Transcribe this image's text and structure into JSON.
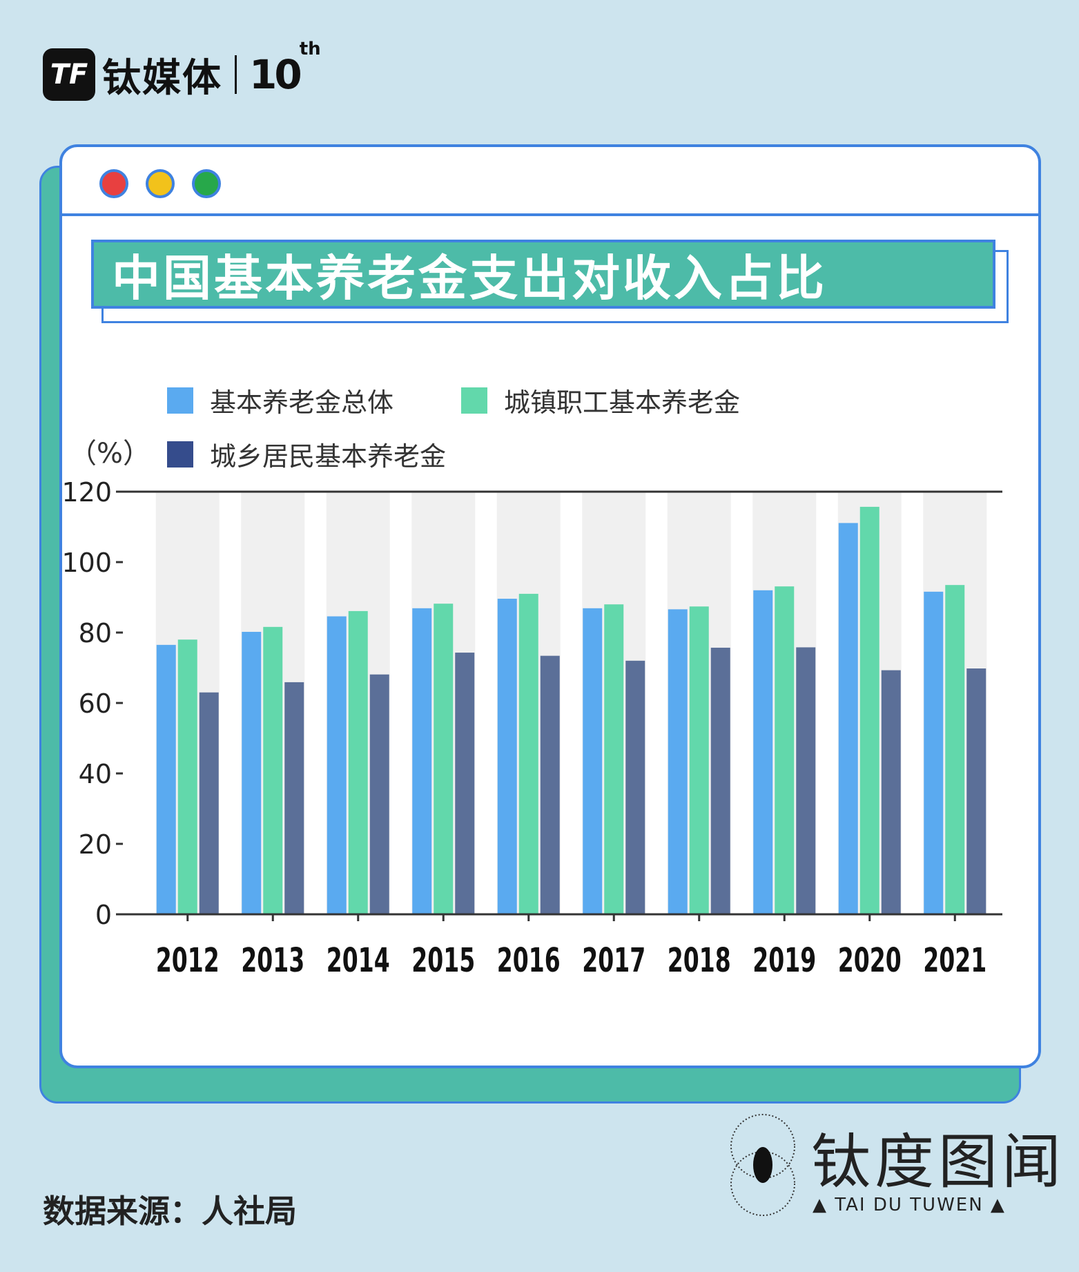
{
  "header": {
    "logo_mark": "TF",
    "logo_text": "钛媒体",
    "logo_anniv": "10",
    "logo_anniv_sup": "th"
  },
  "window_dots": [
    "#e84040",
    "#f2c21b",
    "#27a84a"
  ],
  "chart_data": {
    "type": "bar",
    "title": "中国基本养老金支出对收入占比",
    "ylabel": "（%）",
    "ylim": [
      0,
      120
    ],
    "yticks": [
      0,
      20,
      40,
      60,
      80,
      100,
      120
    ],
    "categories": [
      "2012",
      "2013",
      "2014",
      "2015",
      "2016",
      "2017",
      "2018",
      "2019",
      "2020",
      "2021"
    ],
    "series": [
      {
        "name": "基本养老金总体",
        "color": "#5aaaf0",
        "values": [
          76.5,
          80.2,
          84.6,
          86.9,
          89.6,
          86.9,
          86.6,
          92.0,
          111.1,
          91.6
        ]
      },
      {
        "name": "城镇职工基本养老金",
        "color": "#62d8ab",
        "values": [
          78.0,
          81.6,
          86.1,
          88.2,
          91.0,
          88.0,
          87.4,
          93.1,
          115.7,
          93.5
        ]
      },
      {
        "name": "城乡居民基本养老金",
        "color": "#5b6f98",
        "values": [
          63.0,
          65.9,
          68.1,
          74.3,
          73.4,
          72.0,
          75.7,
          75.8,
          69.3,
          69.8
        ]
      }
    ],
    "legend_swatch_colors": [
      "#5aaaf0",
      "#62d8ab",
      "#354c8c"
    ],
    "legend": "top-left",
    "grid": false,
    "column_bands": true
  },
  "watermark": {
    "title": "钛度图闻",
    "subtitle": "▲ TAI DU TUWEN ▲"
  },
  "footer": {
    "source": "数据来源：人社局"
  }
}
